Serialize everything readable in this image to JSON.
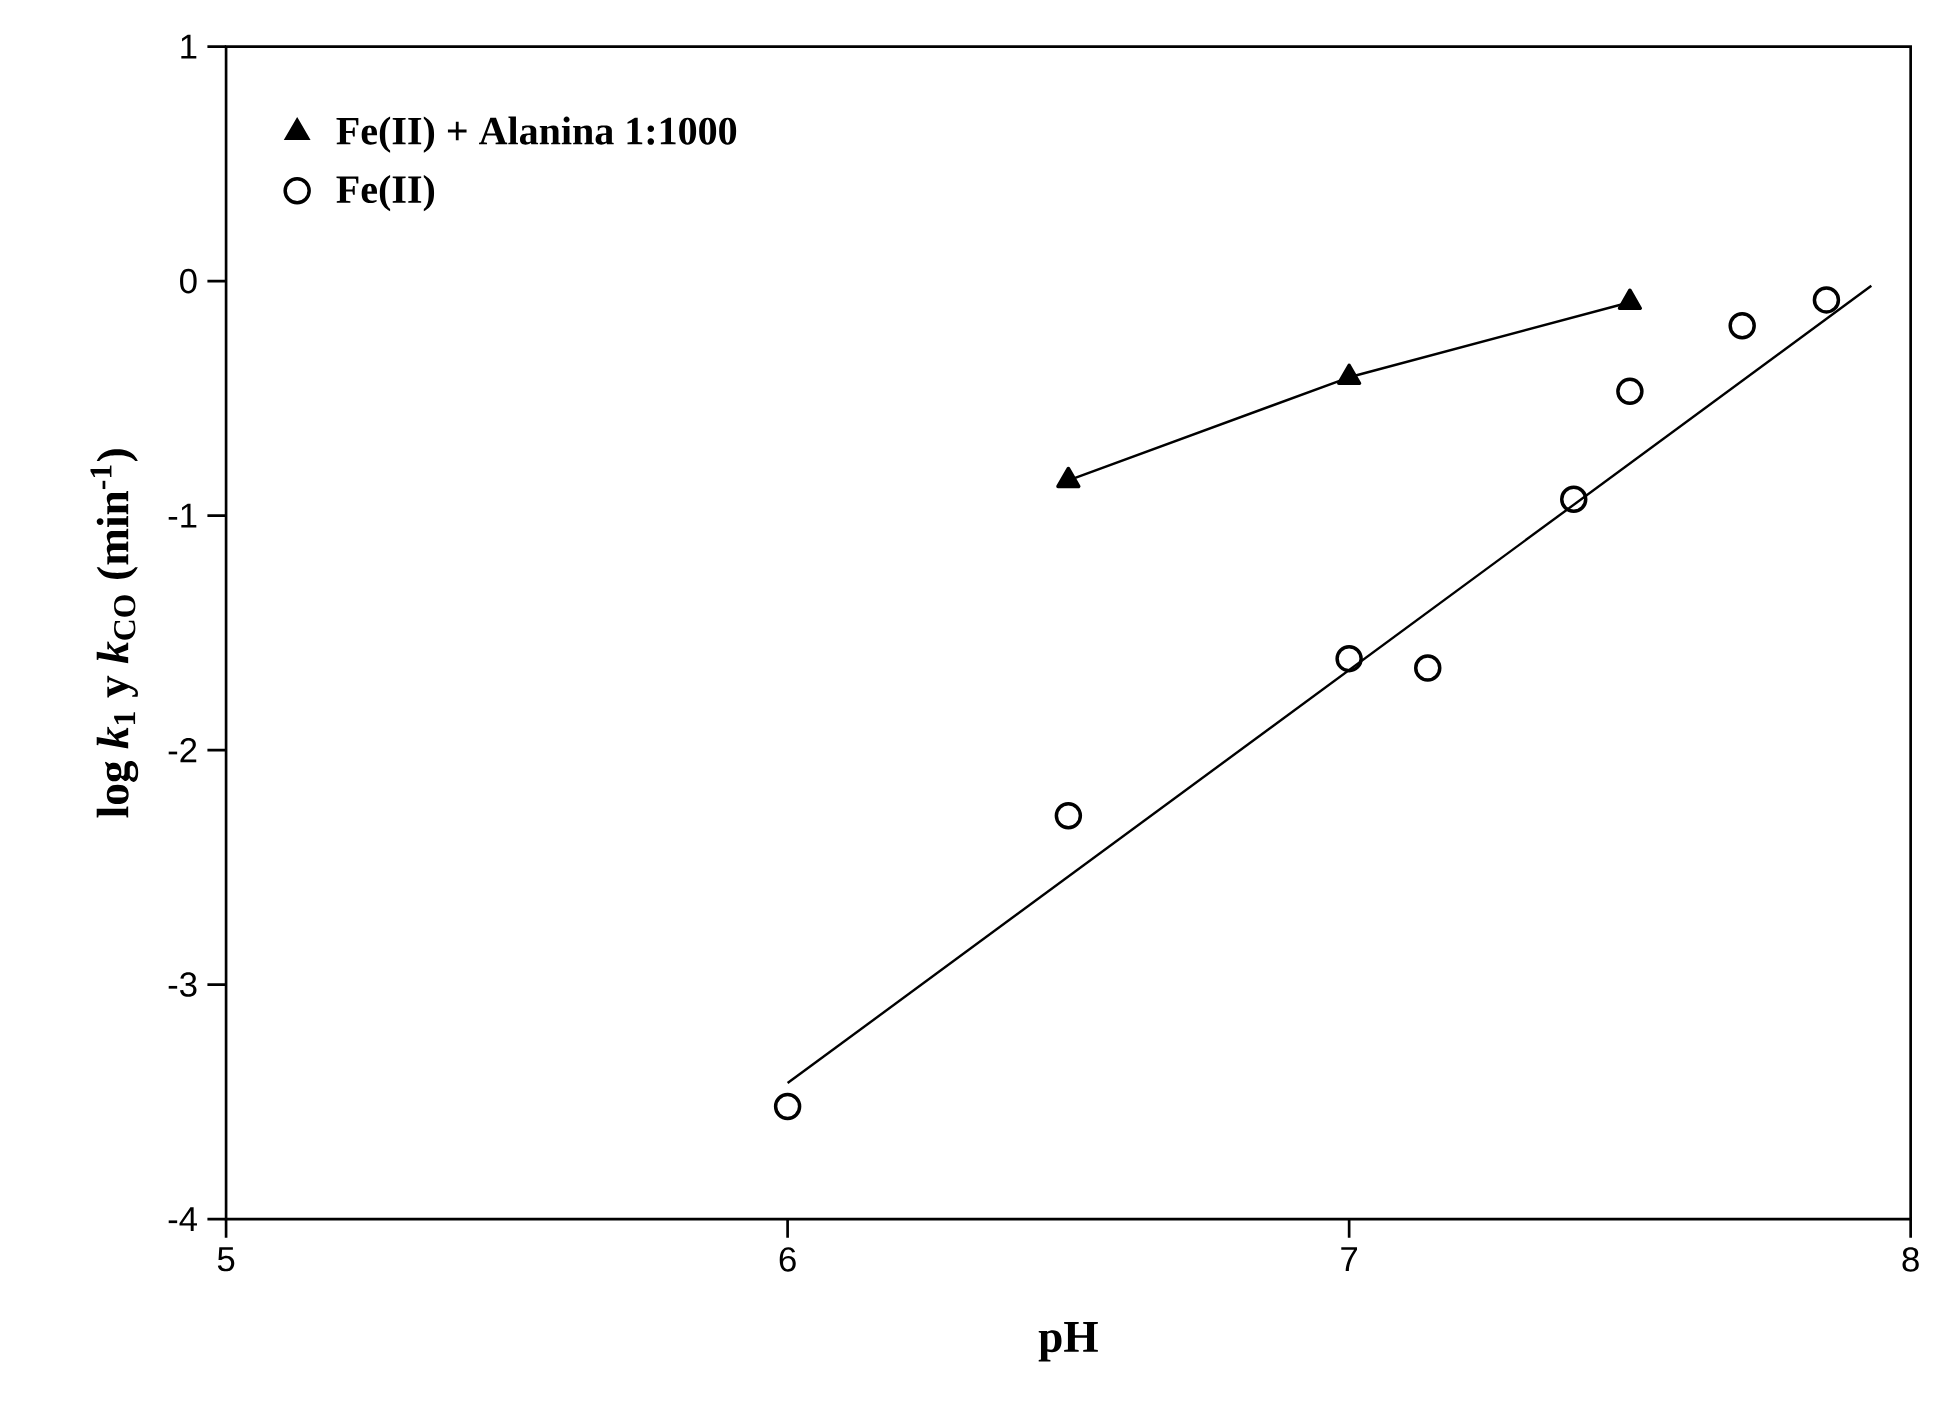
{
  "chart_data": {
    "type": "scatter",
    "xlabel": "pH",
    "ylabel": "log *k*$_{1}$ y *k*$_{CO}$ (min$^{-1}$)",
    "xlim": [
      5,
      8
    ],
    "ylim": [
      -4,
      1
    ],
    "xticks": [
      5,
      6,
      7,
      8
    ],
    "yticks": [
      -4,
      -3,
      -2,
      -1,
      0,
      1
    ],
    "grid": false,
    "legend": "top left",
    "series": [
      {
        "type": "line",
        "name": "Fe(II) + Alanina  1:1000",
        "color": "#000000",
        "marker": "triangle",
        "x": [
          6.5,
          7.0,
          7.5
        ],
        "values": [
          -0.85,
          -0.41,
          -0.09
        ]
      },
      {
        "name": "Fe(II)",
        "color": "#000000",
        "marker": "circle",
        "x": [
          6.0,
          6.5,
          7.0,
          7.14,
          7.4,
          7.5,
          7.7,
          7.85
        ],
        "values": [
          -3.52,
          -2.28,
          -1.61,
          -1.65,
          -0.93,
          -0.47,
          -0.19,
          -0.08
        ]
      },
      {
        "type": "line",
        "color": "#000000",
        "marker": "none",
        "x": [
          6.0,
          7.93
        ],
        "values": [
          -3.42,
          -0.02
        ]
      }
    ]
  }
}
